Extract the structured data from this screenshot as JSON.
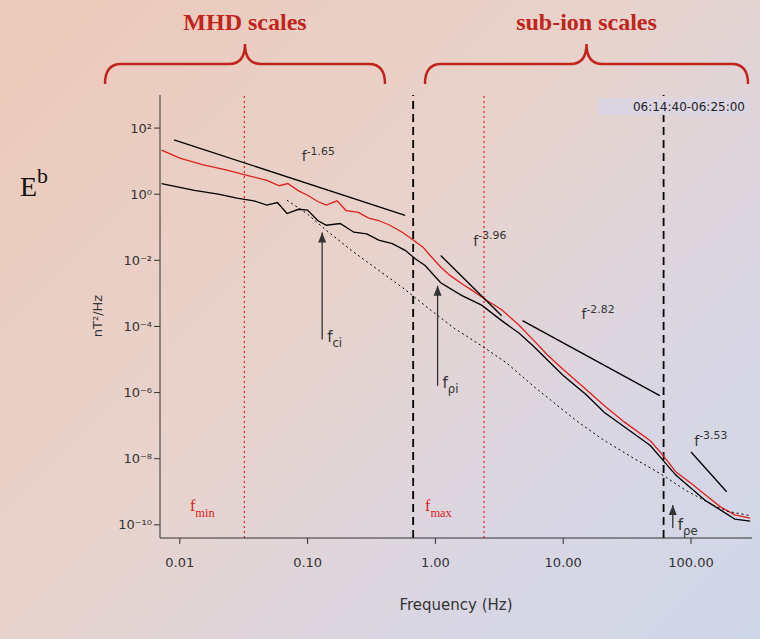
{
  "chart_data": {
    "type": "line",
    "log": true,
    "headers": [
      "MHD scales",
      "sub-ion scales"
    ],
    "panel_label": {
      "text": "E",
      "sup": "b"
    },
    "subtitle": "06:14:40-06:25:00",
    "x_label": "Frequency (Hz)",
    "y_label": "nT²/Hz",
    "xlim": [
      0.007,
      300
    ],
    "ylim": [
      4e-11,
      1000
    ],
    "xticks": [
      0.01,
      {
        "value": 0.1,
        "label": "0.10"
      },
      {
        "value": 1,
        "label": "1.00"
      },
      {
        "value": 10,
        "label": "10.00"
      },
      {
        "value": 100,
        "label": "100.00"
      }
    ],
    "yticks": [
      {
        "value": 100,
        "label": "10²"
      },
      {
        "value": 1,
        "label": "10⁰"
      },
      {
        "value": 0.01,
        "label": "10⁻²"
      },
      {
        "value": 0.0001,
        "label": "10⁻⁴"
      },
      {
        "value": 1e-06,
        "label": "10⁻⁶"
      },
      {
        "value": 1e-08,
        "label": "10⁻⁸"
      },
      {
        "value": 1e-10,
        "label": "10⁻¹⁰"
      }
    ],
    "series": [
      {
        "color": "#e0201b",
        "line_style": "solid",
        "x": [
          0.0072,
          0.01,
          0.015,
          0.023,
          0.033,
          0.048,
          0.06,
          0.07,
          0.085,
          0.1,
          0.12,
          0.14,
          0.17,
          0.2,
          0.25,
          0.3,
          0.36,
          0.44,
          0.55,
          0.67,
          0.8,
          0.91,
          1.1,
          1.3,
          1.6,
          1.9,
          2.5,
          3.3,
          4.5,
          5.8,
          7.5,
          10,
          14,
          21,
          30,
          48,
          60,
          76,
          100,
          130,
          170,
          220,
          290
        ],
        "values": [
          21.4,
          12.3,
          7.9,
          5.4,
          3.8,
          2.6,
          1.8,
          2.1,
          1.26,
          0.93,
          0.6,
          0.47,
          0.63,
          0.32,
          0.28,
          0.19,
          0.16,
          0.115,
          0.071,
          0.041,
          0.025,
          0.014,
          0.0063,
          0.0035,
          0.002,
          0.0013,
          0.00063,
          0.00032,
          0.00011,
          4e-05,
          1.4e-05,
          5e-06,
          1.6e-06,
          4e-07,
          1.3e-07,
          3.5e-08,
          1.3e-08,
          4e-09,
          1.8e-09,
          8e-10,
          3.5e-10,
          2e-10,
          1.6e-10
        ]
      },
      {
        "color": "#000000",
        "line_style": "solid",
        "x": [
          0.0072,
          0.013,
          0.02,
          0.028,
          0.038,
          0.048,
          0.058,
          0.069,
          0.085,
          0.1,
          0.12,
          0.14,
          0.18,
          0.23,
          0.29,
          0.36,
          0.46,
          0.58,
          0.7,
          0.83,
          1.1,
          1.6,
          2.3,
          3.3,
          4.5,
          5.8,
          10,
          15,
          21,
          33,
          48,
          76,
          130,
          220,
          290
        ],
        "values": [
          2.1,
          1.3,
          1.0,
          0.76,
          0.63,
          0.47,
          0.56,
          0.26,
          0.35,
          0.33,
          0.16,
          0.115,
          0.13,
          0.071,
          0.063,
          0.041,
          0.032,
          0.02,
          0.011,
          0.007,
          0.0021,
          0.00087,
          0.00044,
          0.00015,
          6.3e-05,
          2.6e-05,
          3.3e-06,
          8.9e-07,
          2.5e-07,
          7.1e-08,
          2.5e-08,
          3.2e-09,
          5.4e-10,
          1.5e-10,
          1.3e-10
        ]
      },
      {
        "color": "#000000",
        "line_style": "dotted",
        "x": [
          0.069,
          0.1,
          0.14,
          0.22,
          0.36,
          0.58,
          0.91,
          1.4,
          2.3,
          3.6,
          5.8,
          12.7,
          20,
          36,
          60,
          91,
          140,
          190,
          290
        ],
        "values": [
          0.66,
          0.25,
          0.081,
          0.02,
          0.005,
          0.0013,
          0.00032,
          8.9e-05,
          2.6e-05,
          7.9e-06,
          1.6e-06,
          1.4e-07,
          4e-08,
          1e-08,
          3.2e-09,
          1.1e-09,
          4.5e-10,
          2.6e-10,
          1.9e-10
        ]
      }
    ],
    "fits": [
      {
        "label": {
          "text": "f",
          "sup": "-1.65"
        },
        "color": "#000000",
        "x": [
          0.009,
          0.58
        ],
        "values": [
          44,
          0.23
        ],
        "label_x": 0.09,
        "label_y": 10
      },
      {
        "label": {
          "text": "f",
          "sup": "-3.96"
        },
        "color": "#000000",
        "x": [
          1.1,
          3.3
        ],
        "values": [
          0.014,
          0.00021
        ],
        "label_x": 1.98,
        "label_y": 0.028
      },
      {
        "label": {
          "text": "f",
          "sup": "-2.82"
        },
        "color": "#000000",
        "x": [
          4.8,
          57
        ],
        "values": [
          0.00015,
          8.1e-07
        ],
        "label_x": 13.9,
        "label_y": 0.00017
      },
      {
        "label": {
          "text": "f",
          "sup": "-3.53"
        },
        "color": "#000000",
        "x": [
          100,
          190
        ],
        "values": [
          1.6e-08,
          1e-09
        ],
        "label_x": 106,
        "label_y": 2.5e-08
      }
    ],
    "vertical_lines": [
      {
        "x": 0.032,
        "color": "#e0201b",
        "line_style": "dotted"
      },
      {
        "x": 2.4,
        "color": "#e0201b",
        "line_style": "dotted"
      },
      {
        "x": 0.67,
        "color": "#000000",
        "line_style": "dashed"
      },
      {
        "x": 61,
        "color": "#000000",
        "line_style": "dashed"
      }
    ],
    "annotations": [
      {
        "text": "f",
        "sub": "min",
        "x": 0.012,
        "y": 2.6e-10,
        "color": "#e0201b"
      },
      {
        "text": "f",
        "sub": "max",
        "x": 0.83,
        "y": 2.6e-10,
        "color": "#e0201b"
      }
    ],
    "arrows": [
      {
        "text": "f",
        "sub": "ci",
        "x": 0.13,
        "y_tail": 4e-05,
        "y_head": 0.07,
        "color": "#333333"
      },
      {
        "text": "f",
        "sub": "ρi",
        "x": 1.04,
        "y_tail": 1.6e-06,
        "y_head": 0.0017,
        "color": "#333333"
      },
      {
        "text": "f",
        "sub": "ρe",
        "x": 72,
        "y_tail": 8e-11,
        "y_head": 4e-10,
        "color": "#333333"
      }
    ]
  }
}
